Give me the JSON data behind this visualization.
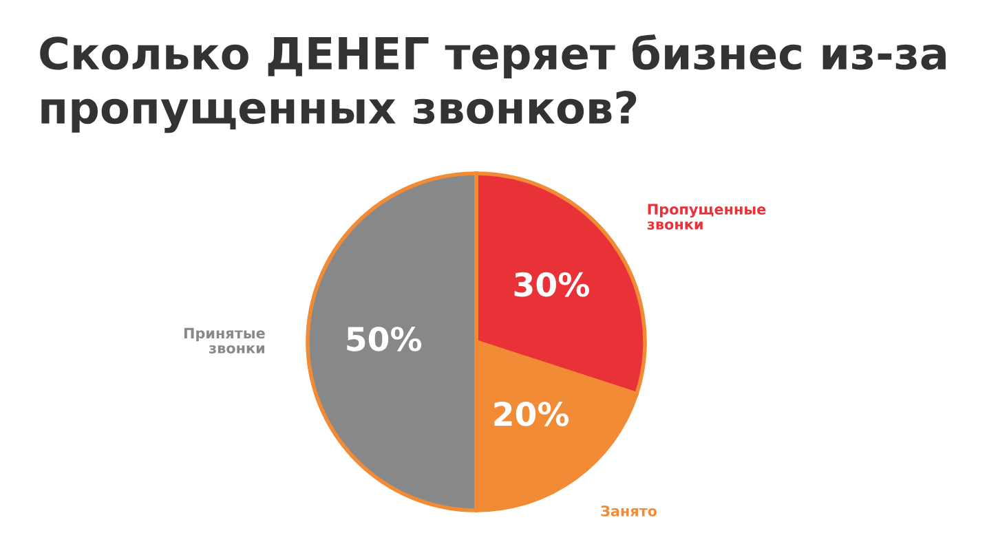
{
  "chart_data": {
    "type": "pie",
    "title": "Сколько ДЕНЕГ теряет бизнес из-за\nпропущенных звонков?",
    "categories": [
      "Пропущенные\nзвонки",
      "Занято",
      "Принятые\nзвонки"
    ],
    "values": [
      30,
      20,
      50
    ],
    "colors": [
      "#e93237",
      "#f28b35",
      "#87888a"
    ],
    "value_labels": [
      "30%",
      "20%",
      "50%"
    ]
  }
}
